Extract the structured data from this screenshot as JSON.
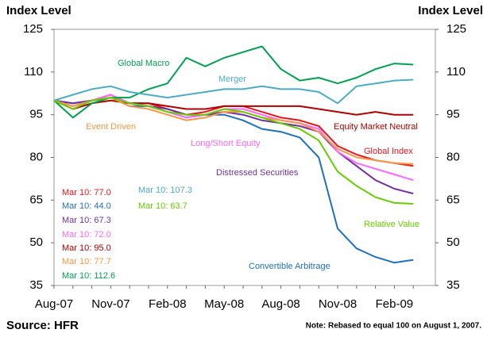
{
  "chart_data": {
    "type": "line",
    "y_label": "Index Level",
    "y2_label": "Index Level",
    "source": "Source: HFR",
    "note": "Note: Rebased to equal 100 on August 1, 2007.",
    "categories": [
      "Aug-07",
      null,
      null,
      "Nov-07",
      null,
      null,
      "Feb-08",
      null,
      null,
      "May-08",
      null,
      null,
      "Aug-08",
      null,
      null,
      "Nov-08",
      null,
      null,
      "Feb-09",
      null
    ],
    "ylim": [
      35,
      125
    ],
    "yticks": [
      35,
      50,
      65,
      80,
      95,
      110,
      125
    ],
    "series": [
      {
        "name": "Global Index",
        "color": "#e8141b",
        "values": [
          100,
          98,
          100,
          102,
          99,
          99,
          97,
          95,
          96,
          98,
          98,
          96,
          94,
          93,
          91,
          84,
          81,
          79,
          78,
          77.0
        ],
        "value_labels": [
          null,
          null,
          null,
          null,
          null,
          null,
          null,
          null,
          null,
          null,
          null,
          null,
          null,
          null,
          null,
          null,
          null,
          null,
          null,
          "Mar 10: 77.0"
        ]
      },
      {
        "name": "Convertible Arbitrage",
        "color": "#1f6fbf",
        "values": [
          100,
          99,
          100,
          101,
          98,
          98,
          96,
          94,
          95,
          95,
          93,
          90,
          89,
          87,
          80,
          55,
          48,
          45,
          43,
          44.0
        ],
        "value_labels": [
          null,
          null,
          null,
          null,
          null,
          null,
          null,
          null,
          null,
          null,
          null,
          null,
          null,
          null,
          null,
          null,
          null,
          null,
          null,
          "Mar 10: 44.0"
        ]
      },
      {
        "name": "Distressed Securities",
        "color": "#7030a0",
        "values": [
          100,
          99,
          100,
          101,
          99,
          98,
          97,
          95,
          95,
          96,
          95,
          93,
          92,
          91,
          89,
          82,
          77,
          72,
          69,
          67.3
        ],
        "value_labels": [
          null,
          null,
          null,
          null,
          null,
          null,
          null,
          null,
          null,
          null,
          null,
          null,
          null,
          null,
          null,
          null,
          null,
          null,
          null,
          "Mar 10: 67.3"
        ]
      },
      {
        "name": "Long/Short Equity",
        "color": "#ff66ff",
        "values": [
          100,
          98,
          100,
          102,
          99,
          98,
          96,
          94,
          95,
          97,
          97,
          95,
          93,
          92,
          90,
          82,
          78,
          76,
          74,
          72.0
        ],
        "value_labels": [
          null,
          null,
          null,
          null,
          null,
          null,
          null,
          null,
          null,
          null,
          null,
          null,
          null,
          null,
          null,
          null,
          null,
          null,
          null,
          "Mar 10: 72.0"
        ]
      },
      {
        "name": "Equity Market Neutral",
        "color": "#b00000",
        "values": [
          100,
          97,
          99,
          100,
          99,
          99,
          98,
          97,
          97,
          98,
          98,
          98,
          98,
          98,
          97,
          96,
          95,
          96,
          95,
          95.0
        ],
        "value_labels": [
          null,
          null,
          null,
          null,
          null,
          null,
          null,
          null,
          null,
          null,
          null,
          null,
          null,
          null,
          null,
          null,
          null,
          null,
          null,
          "Mar 10: 95.0"
        ]
      },
      {
        "name": "Event Driven",
        "color": "#f79646",
        "values": [
          100,
          98,
          100,
          101,
          98,
          97,
          95,
          93,
          94,
          96,
          96,
          94,
          93,
          92,
          89,
          83,
          80,
          79,
          78,
          77.7
        ],
        "value_labels": [
          null,
          null,
          null,
          null,
          null,
          null,
          null,
          null,
          null,
          null,
          null,
          null,
          null,
          null,
          null,
          null,
          null,
          null,
          null,
          "Mar 10: 77.7"
        ]
      },
      {
        "name": "Global Macro",
        "color": "#00a050",
        "values": [
          100,
          94,
          99,
          101,
          101,
          104,
          106,
          115,
          112,
          115,
          117,
          119,
          111,
          107,
          108,
          106,
          108,
          111,
          113,
          112.6
        ],
        "value_labels": [
          null,
          null,
          null,
          null,
          null,
          null,
          null,
          null,
          null,
          null,
          null,
          null,
          null,
          null,
          null,
          null,
          null,
          null,
          null,
          "Mar 10: 112.6"
        ]
      },
      {
        "name": "Merger",
        "color": "#4bacc6",
        "values": [
          100,
          102,
          104,
          105,
          103,
          102,
          101,
          102,
          103,
          104,
          104,
          105,
          104,
          104,
          103,
          99,
          105,
          106,
          107,
          107.3
        ],
        "value_labels": [
          null,
          null,
          null,
          null,
          null,
          null,
          null,
          null,
          null,
          null,
          null,
          null,
          null,
          null,
          null,
          null,
          null,
          null,
          null,
          "Mar 10: 107.3"
        ]
      },
      {
        "name": "Relative Value",
        "color": "#66cc00",
        "values": [
          100,
          97,
          100,
          101,
          99,
          98,
          96,
          95,
          95,
          97,
          96,
          94,
          92,
          90,
          86,
          75,
          70,
          66,
          64,
          63.7
        ],
        "value_labels": [
          null,
          null,
          null,
          null,
          null,
          null,
          null,
          null,
          null,
          null,
          null,
          null,
          null,
          null,
          null,
          null,
          null,
          null,
          null,
          "Mar 10: 63.7"
        ]
      }
    ]
  }
}
